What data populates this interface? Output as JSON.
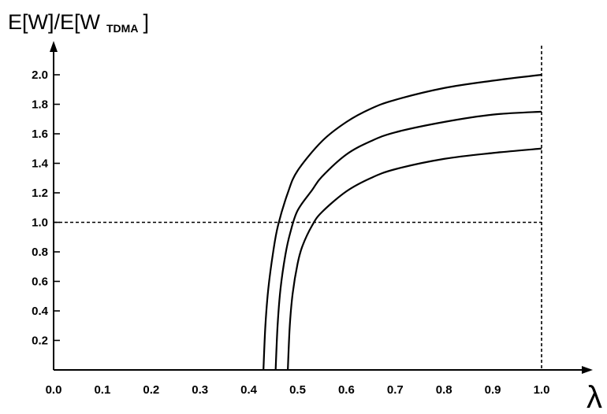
{
  "chart_data": {
    "type": "line",
    "ylabel_main": "E[W]/E[W",
    "ylabel_sub": "TDMA",
    "ylabel_close": "]",
    "xlabel": "λ",
    "xlim": [
      0.0,
      1.0
    ],
    "ylim": [
      0.0,
      2.0
    ],
    "x_ticks": [
      "0.0",
      "0.1",
      "0.2",
      "0.3",
      "0.4",
      "0.5",
      "0.6",
      "0.7",
      "0.8",
      "0.9",
      "1.0"
    ],
    "y_ticks": [
      "0.2",
      "0.4",
      "0.6",
      "0.8",
      "1.0",
      "1.2",
      "1.4",
      "1.6",
      "1.8",
      "2.0"
    ],
    "reference_lines": {
      "y": 1.0,
      "x": 1.0
    },
    "series": [
      {
        "x": [
          0.43,
          0.434,
          0.44,
          0.45,
          0.46,
          0.48,
          0.5,
          0.55,
          0.6,
          0.65,
          0.7,
          0.8,
          0.9,
          1.0
        ],
        "y": [
          0.0,
          0.3,
          0.55,
          0.8,
          0.98,
          1.2,
          1.35,
          1.55,
          1.68,
          1.77,
          1.83,
          1.91,
          1.96,
          2.0
        ]
      },
      {
        "x": [
          0.455,
          0.459,
          0.465,
          0.475,
          0.485,
          0.5,
          0.53,
          0.55,
          0.6,
          0.65,
          0.7,
          0.8,
          0.9,
          1.0
        ],
        "y": [
          0.0,
          0.3,
          0.55,
          0.78,
          0.93,
          1.08,
          1.22,
          1.31,
          1.46,
          1.55,
          1.61,
          1.68,
          1.73,
          1.75
        ]
      },
      {
        "x": [
          0.48,
          0.484,
          0.49,
          0.5,
          0.51,
          0.53,
          0.55,
          0.6,
          0.65,
          0.7,
          0.8,
          0.9,
          1.0
        ],
        "y": [
          0.0,
          0.3,
          0.52,
          0.72,
          0.84,
          0.98,
          1.07,
          1.21,
          1.3,
          1.36,
          1.43,
          1.47,
          1.5
        ]
      }
    ]
  }
}
